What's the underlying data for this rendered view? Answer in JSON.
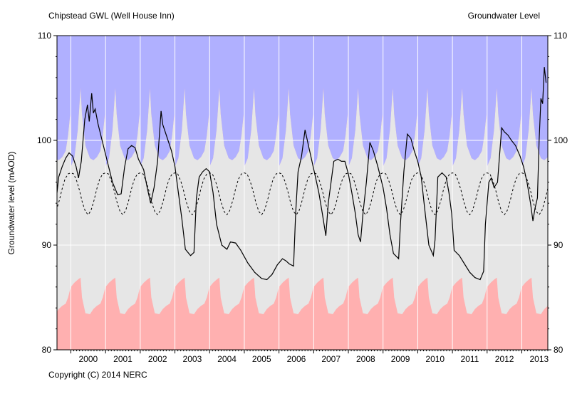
{
  "header": {
    "station": "Chipstead GWL (Well House Inn)",
    "measure": "Groundwater Level"
  },
  "footer": {
    "copyright": "Copyright (C) 2014 NERC"
  },
  "colors": {
    "above_normal_band": "#b0b0ff",
    "normal_band": "#e6e6e6",
    "below_normal_band": "#ffb0b0",
    "gridline": "#ffffff",
    "observed_line": "#000000",
    "mean_line": "#000000"
  },
  "chart_data": {
    "type": "line",
    "title": "Groundwater Level",
    "ylabel": "Groundwater level (mAOD)",
    "xlabel": "",
    "xlim": [
      1999.6,
      2013.75
    ],
    "ylim": [
      80,
      110
    ],
    "y_ticks": [
      80,
      90,
      100,
      110
    ],
    "x_ticks": [
      2000,
      2001,
      2002,
      2003,
      2004,
      2005,
      2006,
      2007,
      2008,
      2009,
      2010,
      2011,
      2012,
      2013
    ],
    "grid": true,
    "series": [
      {
        "style": "solid",
        "points": [
          [
            1999.6,
            95.0
          ],
          [
            1999.65,
            96.5
          ],
          [
            1999.75,
            97.5
          ],
          [
            1999.85,
            98.3
          ],
          [
            1999.95,
            98.8
          ],
          [
            2000.05,
            98.5
          ],
          [
            2000.15,
            97.5
          ],
          [
            2000.22,
            96.4
          ],
          [
            2000.3,
            98.0
          ],
          [
            2000.4,
            102.0
          ],
          [
            2000.48,
            103.4
          ],
          [
            2000.53,
            101.8
          ],
          [
            2000.6,
            104.5
          ],
          [
            2000.65,
            102.6
          ],
          [
            2000.7,
            103.0
          ],
          [
            2000.78,
            101.6
          ],
          [
            2000.9,
            100.0
          ],
          [
            2001.05,
            98.0
          ],
          [
            2001.2,
            96.0
          ],
          [
            2001.35,
            94.8
          ],
          [
            2001.45,
            94.9
          ],
          [
            2001.55,
            97.5
          ],
          [
            2001.65,
            99.2
          ],
          [
            2001.75,
            99.5
          ],
          [
            2001.85,
            99.3
          ],
          [
            2001.95,
            98.2
          ],
          [
            2002.1,
            97.2
          ],
          [
            2002.2,
            95.5
          ],
          [
            2002.3,
            94.0
          ],
          [
            2002.4,
            95.5
          ],
          [
            2002.5,
            98.0
          ],
          [
            2002.6,
            102.8
          ],
          [
            2002.65,
            101.5
          ],
          [
            2002.75,
            100.5
          ],
          [
            2002.9,
            99.0
          ],
          [
            2003.0,
            97.5
          ],
          [
            2003.1,
            95.0
          ],
          [
            2003.2,
            92.5
          ],
          [
            2003.3,
            89.6
          ],
          [
            2003.45,
            89.0
          ],
          [
            2003.55,
            89.3
          ],
          [
            2003.62,
            94.5
          ],
          [
            2003.7,
            96.5
          ],
          [
            2003.8,
            97.0
          ],
          [
            2003.9,
            97.3
          ],
          [
            2004.0,
            97.0
          ],
          [
            2004.1,
            95.0
          ],
          [
            2004.2,
            92.0
          ],
          [
            2004.35,
            90.0
          ],
          [
            2004.5,
            89.6
          ],
          [
            2004.6,
            90.3
          ],
          [
            2004.75,
            90.2
          ],
          [
            2004.9,
            89.5
          ],
          [
            2005.1,
            88.3
          ],
          [
            2005.3,
            87.4
          ],
          [
            2005.5,
            86.8
          ],
          [
            2005.65,
            86.7
          ],
          [
            2005.8,
            87.2
          ],
          [
            2005.95,
            88.1
          ],
          [
            2006.1,
            88.7
          ],
          [
            2006.2,
            88.5
          ],
          [
            2006.3,
            88.2
          ],
          [
            2006.42,
            88.0
          ],
          [
            2006.48,
            93.0
          ],
          [
            2006.55,
            97.0
          ],
          [
            2006.65,
            98.5
          ],
          [
            2006.75,
            101.0
          ],
          [
            2006.85,
            99.5
          ],
          [
            2006.95,
            98.0
          ],
          [
            2007.05,
            96.5
          ],
          [
            2007.15,
            95.0
          ],
          [
            2007.25,
            93.0
          ],
          [
            2007.35,
            90.9
          ],
          [
            2007.42,
            94.0
          ],
          [
            2007.5,
            96.0
          ],
          [
            2007.58,
            98.0
          ],
          [
            2007.7,
            98.2
          ],
          [
            2007.8,
            98.0
          ],
          [
            2007.9,
            98.0
          ],
          [
            2008.0,
            96.8
          ],
          [
            2008.1,
            95.0
          ],
          [
            2008.2,
            93.0
          ],
          [
            2008.28,
            91.0
          ],
          [
            2008.35,
            90.3
          ],
          [
            2008.42,
            93.0
          ],
          [
            2008.52,
            96.0
          ],
          [
            2008.62,
            99.8
          ],
          [
            2008.72,
            99.0
          ],
          [
            2008.85,
            97.5
          ],
          [
            2009.0,
            95.5
          ],
          [
            2009.1,
            93.5
          ],
          [
            2009.2,
            91.0
          ],
          [
            2009.3,
            89.2
          ],
          [
            2009.45,
            88.7
          ],
          [
            2009.5,
            92.0
          ],
          [
            2009.6,
            97.0
          ],
          [
            2009.7,
            100.6
          ],
          [
            2009.8,
            100.2
          ],
          [
            2009.9,
            99.0
          ],
          [
            2010.0,
            98.0
          ],
          [
            2010.1,
            96.5
          ],
          [
            2010.2,
            93.5
          ],
          [
            2010.32,
            90.0
          ],
          [
            2010.45,
            89.0
          ],
          [
            2010.5,
            90.5
          ],
          [
            2010.58,
            96.5
          ],
          [
            2010.7,
            96.9
          ],
          [
            2010.82,
            96.5
          ],
          [
            2010.9,
            95.0
          ],
          [
            2010.98,
            93.0
          ],
          [
            2011.05,
            89.5
          ],
          [
            2011.2,
            89.0
          ],
          [
            2011.35,
            88.2
          ],
          [
            2011.5,
            87.4
          ],
          [
            2011.65,
            86.9
          ],
          [
            2011.8,
            86.7
          ],
          [
            2011.9,
            87.5
          ],
          [
            2011.95,
            92.0
          ],
          [
            2012.05,
            96.0
          ],
          [
            2012.12,
            96.4
          ],
          [
            2012.2,
            95.5
          ],
          [
            2012.3,
            96.0
          ],
          [
            2012.42,
            101.2
          ],
          [
            2012.5,
            100.8
          ],
          [
            2012.6,
            100.5
          ],
          [
            2012.7,
            100.0
          ],
          [
            2012.82,
            99.5
          ],
          [
            2012.95,
            98.5
          ],
          [
            2013.05,
            97.5
          ],
          [
            2013.15,
            96.0
          ],
          [
            2013.25,
            94.0
          ],
          [
            2013.32,
            92.3
          ],
          [
            2013.38,
            93.5
          ],
          [
            2013.45,
            94.5
          ],
          [
            2013.5,
            100.0
          ],
          [
            2013.55,
            104.0
          ],
          [
            2013.6,
            103.5
          ],
          [
            2013.65,
            107.0
          ],
          [
            2013.7,
            105.5
          ]
        ]
      },
      {
        "style": "dashed",
        "mean_period_points": [
          [
            0.0,
            96.9
          ],
          [
            0.08,
            96.8
          ],
          [
            0.17,
            96.1
          ],
          [
            0.25,
            95.2
          ],
          [
            0.33,
            94.1
          ],
          [
            0.42,
            93.2
          ],
          [
            0.5,
            92.9
          ],
          [
            0.58,
            93.3
          ],
          [
            0.67,
            94.3
          ],
          [
            0.75,
            95.4
          ],
          [
            0.83,
            96.3
          ],
          [
            0.92,
            96.8
          ],
          [
            1.0,
            96.9
          ]
        ]
      }
    ],
    "bands": {
      "upper_band_top": 110,
      "normal_band_period_points": [
        [
          0.0,
          97.5,
          86.0
        ],
        [
          0.1,
          98.3,
          86.4
        ],
        [
          0.2,
          101.0,
          86.7
        ],
        [
          0.28,
          105.0,
          86.9
        ],
        [
          0.32,
          102.5,
          85.0
        ],
        [
          0.42,
          99.5,
          83.5
        ],
        [
          0.55,
          98.3,
          83.4
        ],
        [
          0.65,
          98.1,
          83.9
        ],
        [
          0.75,
          98.4,
          84.2
        ],
        [
          0.85,
          99.0,
          84.4
        ],
        [
          0.92,
          100.5,
          85.0
        ],
        [
          0.98,
          102.5,
          85.8
        ],
        [
          1.0,
          97.5,
          86.0
        ]
      ]
    }
  }
}
